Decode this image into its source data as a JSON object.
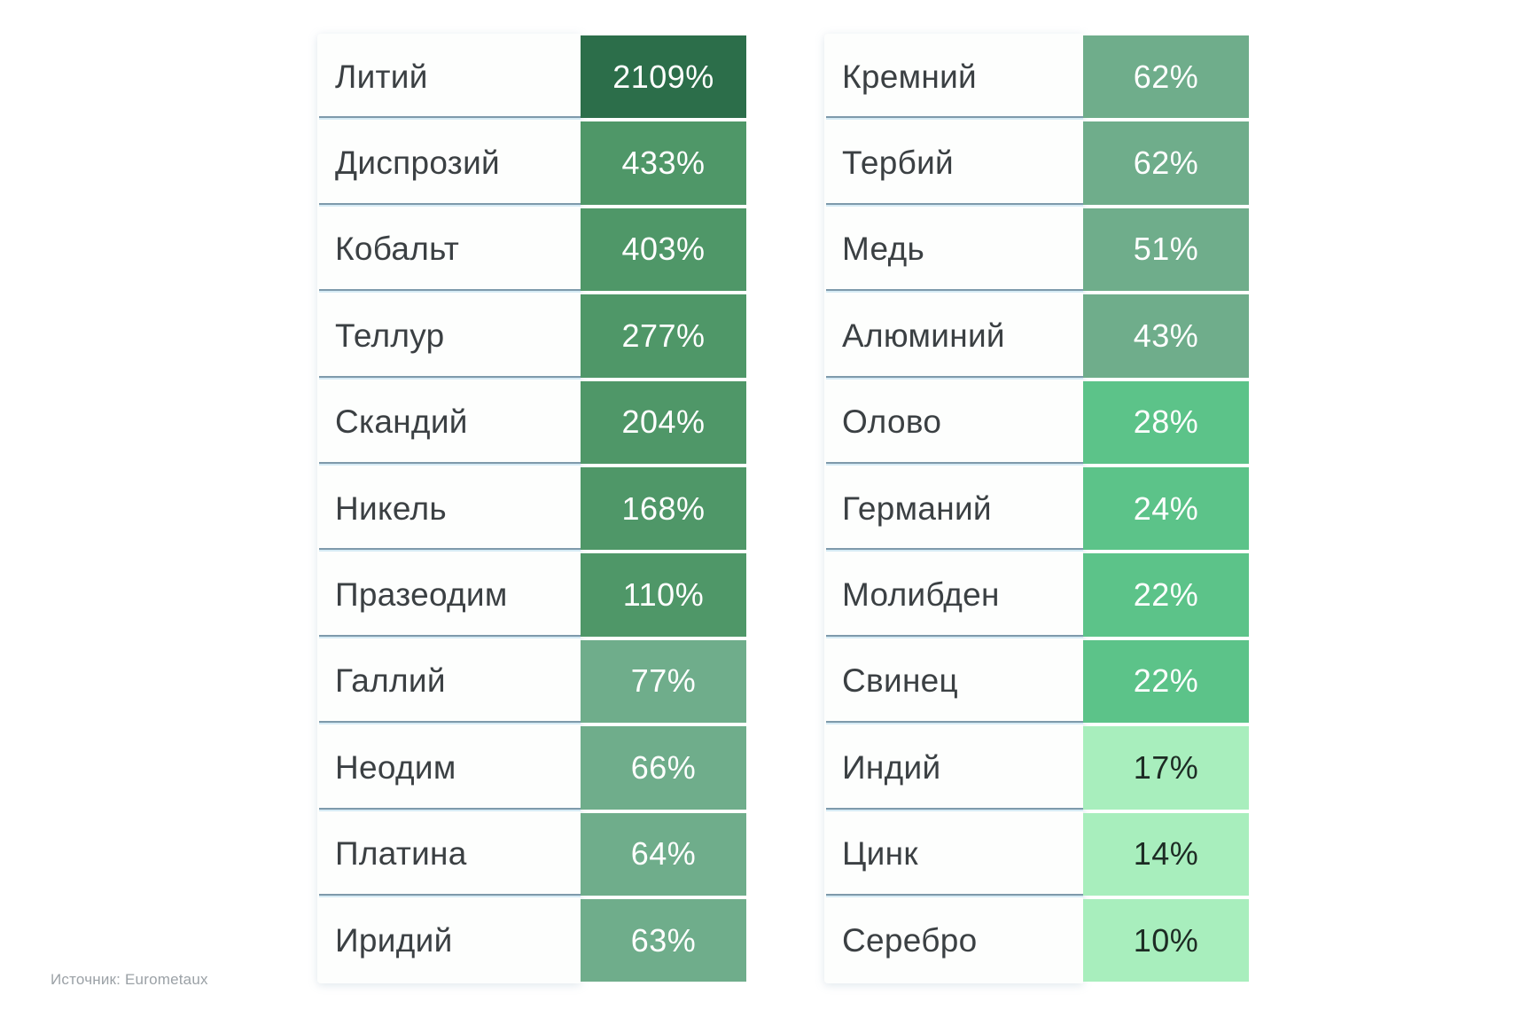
{
  "page": {
    "background_color": "#ffffff",
    "divider_color_top": "#7e9aab",
    "divider_color_bottom": "#d6ebf5",
    "label_text_color": "#3b4043"
  },
  "chart_data": {
    "type": "table",
    "unit": "percent",
    "source": "Источник: Eurometaux",
    "legend_position": "none",
    "columns": [
      {
        "name": "left",
        "rows": [
          {
            "label": "Литий",
            "value": 2109,
            "display": "2109%",
            "cell_color": "#2c6e4a",
            "text_color": "#ffffff"
          },
          {
            "label": "Диспрозий",
            "value": 433,
            "display": "433%",
            "cell_color": "#4f9768",
            "text_color": "#ffffff"
          },
          {
            "label": "Кобальт",
            "value": 403,
            "display": "403%",
            "cell_color": "#4f9768",
            "text_color": "#ffffff"
          },
          {
            "label": "Теллур",
            "value": 277,
            "display": "277%",
            "cell_color": "#4f9768",
            "text_color": "#ffffff"
          },
          {
            "label": "Скандий",
            "value": 204,
            "display": "204%",
            "cell_color": "#4f9768",
            "text_color": "#ffffff"
          },
          {
            "label": "Никель",
            "value": 168,
            "display": "168%",
            "cell_color": "#4f9768",
            "text_color": "#ffffff"
          },
          {
            "label": "Празеодим",
            "value": 110,
            "display": "110%",
            "cell_color": "#4f9768",
            "text_color": "#ffffff"
          },
          {
            "label": "Галлий",
            "value": 77,
            "display": "77%",
            "cell_color": "#6fad8b",
            "text_color": "#ffffff"
          },
          {
            "label": "Неодим",
            "value": 66,
            "display": "66%",
            "cell_color": "#6fad8b",
            "text_color": "#ffffff"
          },
          {
            "label": "Платина",
            "value": 64,
            "display": "64%",
            "cell_color": "#6fad8b",
            "text_color": "#ffffff"
          },
          {
            "label": "Иридий",
            "value": 63,
            "display": "63%",
            "cell_color": "#6fad8b",
            "text_color": "#ffffff"
          }
        ]
      },
      {
        "name": "right",
        "rows": [
          {
            "label": "Кремний",
            "value": 62,
            "display": "62%",
            "cell_color": "#6fad8b",
            "text_color": "#ffffff"
          },
          {
            "label": "Тербий",
            "value": 62,
            "display": "62%",
            "cell_color": "#6fad8b",
            "text_color": "#ffffff"
          },
          {
            "label": "Медь",
            "value": 51,
            "display": "51%",
            "cell_color": "#6fad8b",
            "text_color": "#ffffff"
          },
          {
            "label": "Алюминий",
            "value": 43,
            "display": "43%",
            "cell_color": "#6fad8b",
            "text_color": "#ffffff"
          },
          {
            "label": "Олово",
            "value": 28,
            "display": "28%",
            "cell_color": "#5cc389",
            "text_color": "#ffffff"
          },
          {
            "label": "Германий",
            "value": 24,
            "display": "24%",
            "cell_color": "#5cc389",
            "text_color": "#ffffff"
          },
          {
            "label": "Молибден",
            "value": 22,
            "display": "22%",
            "cell_color": "#5cc389",
            "text_color": "#ffffff"
          },
          {
            "label": "Свинец",
            "value": 22,
            "display": "22%",
            "cell_color": "#5cc389",
            "text_color": "#ffffff"
          },
          {
            "label": "Индий",
            "value": 17,
            "display": "17%",
            "cell_color": "#a8eebd",
            "text_color": "#1d2b24"
          },
          {
            "label": "Цинк",
            "value": 14,
            "display": "14%",
            "cell_color": "#a8eebd",
            "text_color": "#1d2b24"
          },
          {
            "label": "Серебро",
            "value": 10,
            "display": "10%",
            "cell_color": "#a8eebd",
            "text_color": "#1d2b24"
          }
        ]
      }
    ]
  }
}
